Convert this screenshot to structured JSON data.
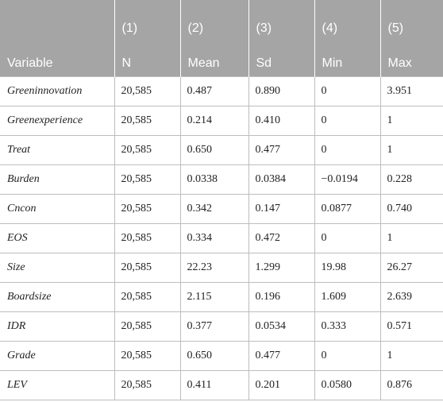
{
  "table": {
    "header_numbers": [
      "(1)",
      "(2)",
      "(3)",
      "(4)",
      "(5)"
    ],
    "variable_label": "Variable",
    "columns": [
      "N",
      "Mean",
      "Sd",
      "Min",
      "Max"
    ],
    "rows": [
      [
        "Greeninnovation",
        "20,585",
        "0.487",
        "0.890",
        "0",
        "3.951"
      ],
      [
        "Greenexperience",
        "20,585",
        "0.214",
        "0.410",
        "0",
        "1"
      ],
      [
        "Treat",
        "20,585",
        "0.650",
        "0.477",
        "0",
        "1"
      ],
      [
        "Burden",
        "20,585",
        "0.0338",
        "0.0384",
        "−0.0194",
        "0.228"
      ],
      [
        "Cncon",
        "20,585",
        "0.342",
        "0.147",
        "0.0877",
        "0.740"
      ],
      [
        "EOS",
        "20,585",
        "0.334",
        "0.472",
        "0",
        "1"
      ],
      [
        "Size",
        "20,585",
        "22.23",
        "1.299",
        "19.98",
        "26.27"
      ],
      [
        "Boardsize",
        "20,585",
        "2.115",
        "0.196",
        "1.609",
        "2.639"
      ],
      [
        "IDR",
        "20,585",
        "0.377",
        "0.0534",
        "0.333",
        "0.571"
      ],
      [
        "Grade",
        "20,585",
        "0.650",
        "0.477",
        "0",
        "1"
      ],
      [
        "LEV",
        "20,585",
        "0.411",
        "0.201",
        "0.0580",
        "0.876"
      ]
    ]
  }
}
